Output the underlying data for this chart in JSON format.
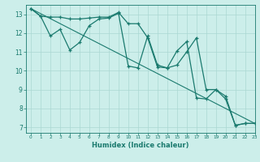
{
  "line1_x": [
    0,
    1,
    2,
    3,
    4,
    5,
    6,
    7,
    8,
    9,
    10,
    11,
    12,
    13,
    14,
    15,
    16,
    17,
    18,
    19,
    20,
    21,
    22,
    23
  ],
  "line1_y": [
    13.3,
    12.9,
    12.85,
    12.85,
    12.75,
    12.75,
    12.8,
    12.85,
    12.85,
    13.1,
    12.5,
    12.5,
    11.75,
    10.2,
    10.15,
    10.3,
    11.0,
    11.75,
    9.0,
    9.0,
    8.5,
    7.1,
    7.2,
    7.2
  ],
  "line2_x": [
    0,
    1,
    2,
    3,
    4,
    5,
    6,
    7,
    8,
    9,
    10,
    11,
    12,
    13,
    14,
    15,
    16,
    17,
    18,
    19,
    20,
    21,
    22,
    23
  ],
  "line2_y": [
    13.3,
    12.9,
    11.85,
    12.2,
    11.1,
    11.5,
    12.4,
    12.75,
    12.8,
    13.05,
    10.25,
    10.15,
    11.85,
    10.3,
    10.15,
    11.05,
    11.55,
    8.55,
    8.5,
    9.0,
    8.65,
    7.1,
    7.2,
    7.2
  ],
  "line3_x": [
    0,
    23
  ],
  "line3_y": [
    13.3,
    7.2
  ],
  "color": "#1a7a6e",
  "bg_color": "#cceeea",
  "grid_color": "#aad8d2",
  "xlabel": "Humidex (Indice chaleur)",
  "xlim": [
    -0.5,
    23
  ],
  "ylim": [
    6.7,
    13.5
  ],
  "yticks": [
    7,
    8,
    9,
    10,
    11,
    12,
    13
  ],
  "xticks": [
    0,
    1,
    2,
    3,
    4,
    5,
    6,
    7,
    8,
    9,
    10,
    11,
    12,
    13,
    14,
    15,
    16,
    17,
    18,
    19,
    20,
    21,
    22,
    23
  ]
}
